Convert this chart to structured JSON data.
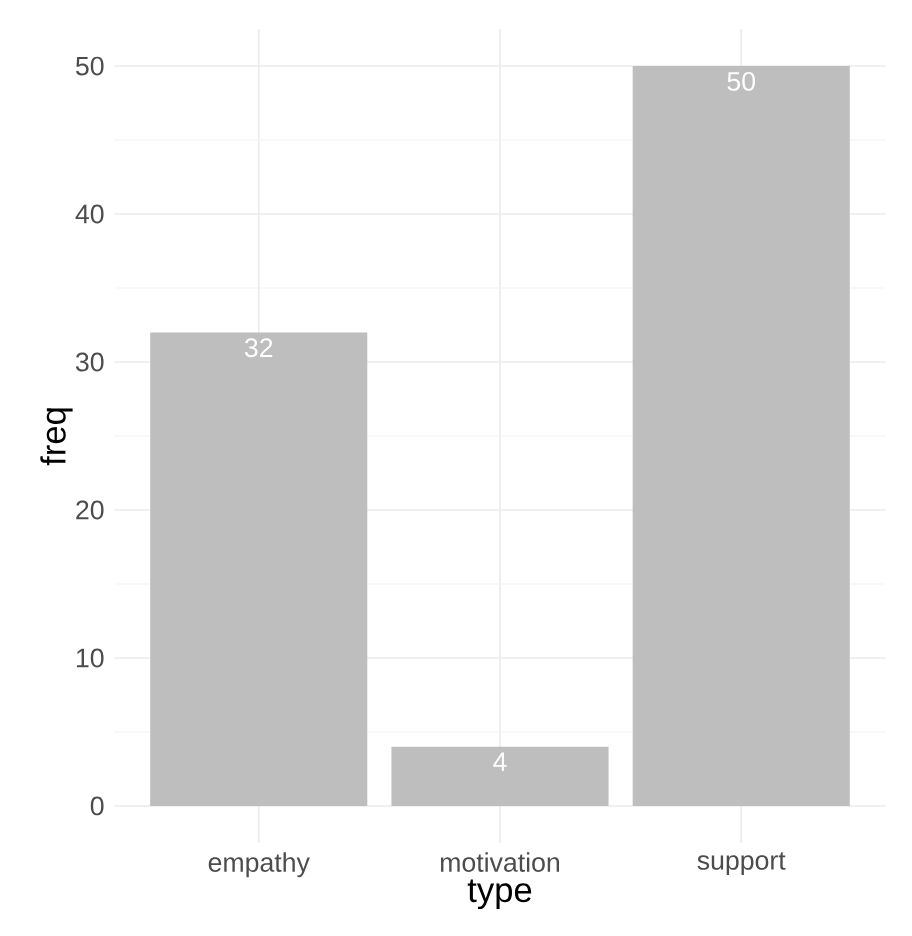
{
  "chart_data": {
    "type": "bar",
    "xlabel": "type",
    "ylabel": "freq",
    "categories": [
      "empathy",
      "motivation",
      "support"
    ],
    "values": [
      32,
      4,
      50
    ],
    "color": "#bebebe",
    "ylim": [
      -2.5,
      52.5
    ],
    "yticks": [
      0,
      10,
      20,
      30,
      40,
      50
    ],
    "grid": true,
    "data_labels": true
  }
}
